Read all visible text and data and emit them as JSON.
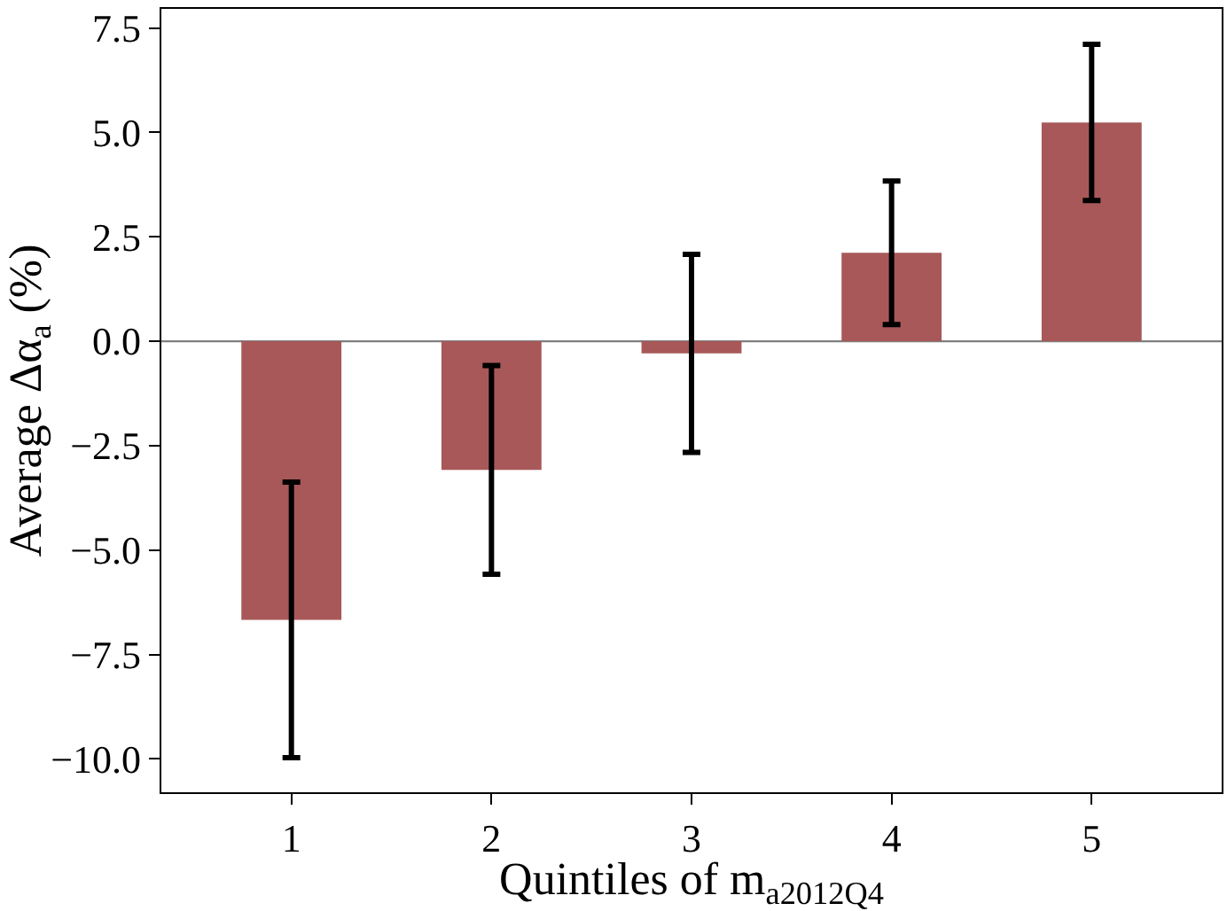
{
  "chart_data": {
    "type": "bar",
    "xlabel": "Quintiles of m$_{a2012Q4}$",
    "ylabel": "Average Δα$_{a}$ (%)",
    "categories": [
      "1",
      "2",
      "3",
      "4",
      "5"
    ],
    "values": [
      -6.67,
      -3.08,
      -0.29,
      2.12,
      5.24
    ],
    "errors": [
      3.3,
      2.5,
      2.37,
      1.72,
      1.87
    ],
    "color": "#a85858",
    "ylim": [
      -10.8,
      7.96
    ],
    "yticks": [
      {
        "value": -10.0,
        "label": "−10.0"
      },
      {
        "value": -7.5,
        "label": "−7.5"
      },
      {
        "value": -5.0,
        "label": "−5.0"
      },
      {
        "value": -2.5,
        "label": "−2.5"
      },
      {
        "value": 0.0,
        "label": "0.0"
      },
      {
        "value": 2.5,
        "label": "2.5"
      },
      {
        "value": 5.0,
        "label": "5.0"
      },
      {
        "value": 7.5,
        "label": "7.5"
      }
    ],
    "ref_lines": [
      {
        "axis": "y",
        "value": 0,
        "color": "#808080"
      }
    ],
    "grid": false
  }
}
